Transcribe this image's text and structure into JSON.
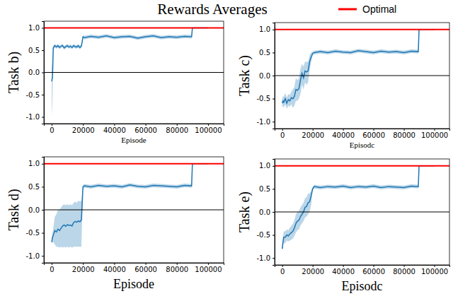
{
  "title": "Rewards Averages",
  "legend": "upper right",
  "chart_data": [
    {
      "type": "line",
      "ylabel": "Task b)",
      "xlabel": "Episode",
      "xlim": [
        -5000,
        110000
      ],
      "ylim": [
        -1.15,
        1.15
      ],
      "xticks": [
        0,
        20000,
        40000,
        60000,
        80000,
        100000
      ],
      "yticks": [
        {
          "value": -1,
          "label": "-1.0"
        },
        {
          "value": -0.5,
          "label": "-0.5"
        },
        {
          "value": 0,
          "label": "0.0"
        },
        {
          "value": 0.5,
          "label": "0.5"
        },
        {
          "value": 1,
          "label": "1.0"
        }
      ],
      "x": [
        0,
        500,
        1000,
        2000,
        3000,
        4000,
        5000,
        6000,
        7000,
        8000,
        9000,
        10000,
        11000,
        12000,
        13000,
        14000,
        15000,
        16000,
        17000,
        18000,
        19000,
        20000,
        21000,
        25000,
        30000,
        35000,
        40000,
        45000,
        50000,
        55000,
        60000,
        65000,
        70000,
        75000,
        80000,
        85000,
        89500,
        90000,
        92000,
        95000,
        100000
      ],
      "series": [
        {
          "color": "#1f77b4",
          "values": [
            -0.2,
            -0.1,
            0.55,
            0.6,
            0.57,
            0.6,
            0.56,
            0.59,
            0.6,
            0.55,
            0.58,
            0.6,
            0.57,
            0.59,
            0.56,
            0.6,
            0.58,
            0.57,
            0.6,
            0.56,
            0.59,
            0.8,
            0.78,
            0.81,
            0.79,
            0.82,
            0.78,
            0.8,
            0.81,
            0.77,
            0.8,
            0.82,
            0.78,
            0.8,
            0.79,
            0.81,
            0.8,
            1.0,
            1.0,
            1.0,
            1.0
          ],
          "lower": [
            -1.0,
            -0.6,
            0.5,
            0.56,
            0.53,
            0.56,
            0.52,
            0.55,
            0.56,
            0.51,
            0.54,
            0.56,
            0.53,
            0.55,
            0.52,
            0.56,
            0.54,
            0.53,
            0.56,
            0.52,
            0.55,
            0.76,
            0.74,
            0.77,
            0.75,
            0.78,
            0.74,
            0.76,
            0.77,
            0.73,
            0.76,
            0.78,
            0.74,
            0.76,
            0.75,
            0.77,
            0.76,
            1.0,
            1.0,
            1.0,
            1.0
          ],
          "upper": [
            0.1,
            0.3,
            0.6,
            0.64,
            0.61,
            0.64,
            0.6,
            0.63,
            0.64,
            0.59,
            0.62,
            0.64,
            0.61,
            0.63,
            0.6,
            0.64,
            0.62,
            0.61,
            0.64,
            0.6,
            0.63,
            0.84,
            0.82,
            0.85,
            0.83,
            0.86,
            0.82,
            0.84,
            0.85,
            0.81,
            0.84,
            0.86,
            0.82,
            0.84,
            0.83,
            0.85,
            0.84,
            1.0,
            1.0,
            1.0,
            1.0
          ]
        }
      ],
      "reference_lines": [
        {
          "name": "Optimal",
          "value": 1,
          "color": "#ff0000"
        },
        {
          "value": 0,
          "color": "#000000"
        }
      ]
    },
    {
      "type": "line",
      "ylabel": "Task c)",
      "xlabel": "Episodc",
      "xlim": [
        -5000,
        110000
      ],
      "ylim": [
        -1.15,
        1.15
      ],
      "xticks": [
        0,
        20000,
        40000,
        60000,
        80000,
        100000
      ],
      "yticks": [
        {
          "value": -1,
          "label": "-1.0"
        },
        {
          "value": -0.5,
          "label": "-0.5"
        },
        {
          "value": 0,
          "label": "0.0"
        },
        {
          "value": 0.5,
          "label": "0.5"
        },
        {
          "value": 1,
          "label": "1.0"
        }
      ],
      "x": [
        0,
        500,
        1000,
        2000,
        3000,
        4000,
        5000,
        6000,
        7000,
        8000,
        9000,
        10000,
        11000,
        12000,
        13000,
        14000,
        15000,
        16000,
        17000,
        18000,
        19000,
        20000,
        21000,
        25000,
        30000,
        35000,
        40000,
        45000,
        50000,
        55000,
        60000,
        65000,
        70000,
        75000,
        80000,
        85000,
        89500,
        90000,
        92000,
        95000,
        100000
      ],
      "series": [
        {
          "color": "#1f77b4",
          "values": [
            -0.6,
            -0.55,
            -0.58,
            -0.5,
            -0.6,
            -0.52,
            -0.55,
            -0.48,
            -0.5,
            -0.45,
            -0.3,
            -0.32,
            -0.28,
            -0.1,
            0.05,
            -0.05,
            0.1,
            0.08,
            0.1,
            0.3,
            0.4,
            0.48,
            0.5,
            0.52,
            0.5,
            0.53,
            0.51,
            0.5,
            0.54,
            0.52,
            0.5,
            0.53,
            0.51,
            0.52,
            0.5,
            0.53,
            0.52,
            1.0,
            1.0,
            1.0,
            1.0
          ],
          "lower": [
            -0.7,
            -0.65,
            -0.7,
            -0.62,
            -0.72,
            -0.65,
            -0.68,
            -0.62,
            -0.7,
            -0.65,
            -0.55,
            -0.55,
            -0.5,
            -0.4,
            -0.2,
            -0.3,
            -0.15,
            -0.2,
            -0.15,
            0.1,
            0.3,
            0.44,
            0.46,
            0.48,
            0.46,
            0.49,
            0.47,
            0.46,
            0.5,
            0.48,
            0.46,
            0.49,
            0.47,
            0.48,
            0.46,
            0.49,
            0.48,
            1.0,
            1.0,
            1.0,
            1.0
          ],
          "upper": [
            -0.5,
            -0.45,
            -0.46,
            -0.38,
            -0.48,
            -0.4,
            -0.42,
            -0.35,
            -0.3,
            -0.25,
            -0.05,
            -0.1,
            -0.05,
            0.15,
            0.25,
            0.2,
            0.3,
            0.3,
            0.3,
            0.45,
            0.5,
            0.52,
            0.54,
            0.56,
            0.54,
            0.57,
            0.55,
            0.54,
            0.58,
            0.56,
            0.54,
            0.57,
            0.55,
            0.56,
            0.54,
            0.57,
            0.56,
            1.0,
            1.0,
            1.0,
            1.0
          ]
        }
      ],
      "reference_lines": [
        {
          "name": "Optimal",
          "value": 1,
          "color": "#ff0000"
        },
        {
          "value": 0,
          "color": "#000000"
        }
      ]
    },
    {
      "type": "line",
      "ylabel": "Task d)",
      "xlabel": "Episode",
      "xlim": [
        -5000,
        110000
      ],
      "ylim": [
        -1.15,
        1.15
      ],
      "xticks": [
        0,
        20000,
        40000,
        60000,
        80000,
        100000
      ],
      "yticks": [
        {
          "value": -1,
          "label": "-1.0"
        },
        {
          "value": -0.5,
          "label": "-0.5"
        },
        {
          "value": 0,
          "label": "0.0"
        },
        {
          "value": 0.5,
          "label": "0.5"
        },
        {
          "value": 1,
          "label": "1.0"
        }
      ],
      "x": [
        0,
        500,
        1000,
        2000,
        3000,
        4000,
        5000,
        6000,
        7000,
        8000,
        9000,
        10000,
        11000,
        12000,
        13000,
        14000,
        15000,
        16000,
        17000,
        18000,
        19000,
        20000,
        21000,
        25000,
        30000,
        35000,
        40000,
        45000,
        50000,
        55000,
        60000,
        65000,
        70000,
        75000,
        80000,
        85000,
        89500,
        90000,
        92000,
        95000,
        100000
      ],
      "series": [
        {
          "color": "#1f77b4",
          "values": [
            -0.7,
            -0.6,
            -0.55,
            -0.45,
            -0.48,
            -0.42,
            -0.45,
            -0.4,
            -0.35,
            -0.33,
            -0.36,
            -0.32,
            -0.34,
            -0.33,
            -0.35,
            -0.28,
            -0.25,
            -0.27,
            -0.24,
            -0.26,
            -0.22,
            0.5,
            0.52,
            0.5,
            0.53,
            0.51,
            0.52,
            0.5,
            0.54,
            0.51,
            0.5,
            0.53,
            0.52,
            0.51,
            0.5,
            0.53,
            0.52,
            1.0,
            1.0,
            1.0,
            1.0
          ],
          "lower": [
            -0.75,
            -0.7,
            -0.7,
            -0.75,
            -0.8,
            -0.8,
            -0.82,
            -0.8,
            -0.82,
            -0.8,
            -0.82,
            -0.8,
            -0.82,
            -0.8,
            -0.82,
            -0.8,
            -0.8,
            -0.8,
            -0.8,
            -0.8,
            -0.8,
            0.46,
            0.48,
            0.46,
            0.49,
            0.47,
            0.48,
            0.46,
            0.5,
            0.47,
            0.46,
            0.49,
            0.48,
            0.47,
            0.46,
            0.49,
            0.48,
            1.0,
            1.0,
            1.0,
            1.0
          ],
          "upper": [
            -0.6,
            -0.5,
            -0.4,
            -0.15,
            -0.1,
            0.0,
            0.0,
            0.05,
            0.1,
            0.12,
            0.1,
            0.12,
            0.1,
            0.12,
            0.1,
            0.15,
            0.18,
            0.15,
            0.2,
            0.18,
            0.2,
            0.54,
            0.56,
            0.54,
            0.57,
            0.55,
            0.56,
            0.54,
            0.58,
            0.55,
            0.54,
            0.57,
            0.56,
            0.55,
            0.54,
            0.57,
            0.56,
            1.0,
            1.0,
            1.0,
            1.0
          ]
        }
      ],
      "reference_lines": [
        {
          "name": "Optimal",
          "value": 1,
          "color": "#ff0000"
        },
        {
          "value": 0,
          "color": "#000000"
        }
      ]
    },
    {
      "type": "line",
      "ylabel": "Task e)",
      "xlabel": "Episodc",
      "xlim": [
        -5000,
        110000
      ],
      "ylim": [
        -1.15,
        1.15
      ],
      "xticks": [
        0,
        20000,
        40000,
        60000,
        80000,
        100000
      ],
      "yticks": [
        {
          "value": -1,
          "label": "-1.0"
        },
        {
          "value": -0.5,
          "label": "-0.5"
        },
        {
          "value": 0,
          "label": "0.0"
        },
        {
          "value": 0.5,
          "label": "0.5"
        },
        {
          "value": 1,
          "label": "1.0"
        }
      ],
      "x": [
        0,
        500,
        1000,
        2000,
        3000,
        4000,
        5000,
        6000,
        7000,
        8000,
        9000,
        10000,
        11000,
        12000,
        13000,
        14000,
        15000,
        16000,
        17000,
        18000,
        19000,
        20000,
        21000,
        25000,
        30000,
        35000,
        40000,
        45000,
        50000,
        55000,
        60000,
        65000,
        70000,
        75000,
        80000,
        85000,
        89500,
        90000,
        92000,
        95000,
        100000
      ],
      "series": [
        {
          "color": "#1f77b4",
          "values": [
            -0.8,
            -0.65,
            -0.55,
            -0.55,
            -0.5,
            -0.52,
            -0.48,
            -0.45,
            -0.42,
            -0.35,
            -0.25,
            -0.2,
            -0.18,
            -0.1,
            -0.05,
            0.0,
            0.1,
            0.12,
            0.2,
            0.22,
            0.35,
            0.5,
            0.55,
            0.53,
            0.55,
            0.54,
            0.56,
            0.53,
            0.55,
            0.54,
            0.56,
            0.53,
            0.55,
            0.54,
            0.53,
            0.56,
            0.55,
            1.0,
            1.0,
            1.0,
            1.0
          ],
          "lower": [
            -0.85,
            -0.75,
            -0.68,
            -0.68,
            -0.62,
            -0.64,
            -0.62,
            -0.6,
            -0.58,
            -0.52,
            -0.45,
            -0.4,
            -0.38,
            -0.3,
            -0.25,
            -0.2,
            -0.12,
            -0.1,
            -0.05,
            0.0,
            0.15,
            0.46,
            0.51,
            0.49,
            0.51,
            0.5,
            0.52,
            0.49,
            0.51,
            0.5,
            0.52,
            0.49,
            0.51,
            0.5,
            0.49,
            0.52,
            0.51,
            1.0,
            1.0,
            1.0,
            1.0
          ],
          "upper": [
            -0.75,
            -0.55,
            -0.42,
            -0.42,
            -0.38,
            -0.4,
            -0.34,
            -0.3,
            -0.26,
            -0.18,
            -0.05,
            0.0,
            0.02,
            0.1,
            0.15,
            0.2,
            0.3,
            0.32,
            0.4,
            0.4,
            0.45,
            0.54,
            0.59,
            0.57,
            0.59,
            0.58,
            0.6,
            0.57,
            0.59,
            0.58,
            0.6,
            0.57,
            0.59,
            0.58,
            0.57,
            0.6,
            0.59,
            1.0,
            1.0,
            1.0,
            1.0
          ]
        }
      ],
      "reference_lines": [
        {
          "name": "Optimal",
          "value": 1,
          "color": "#ff0000"
        },
        {
          "value": 0,
          "color": "#000000"
        }
      ]
    }
  ]
}
